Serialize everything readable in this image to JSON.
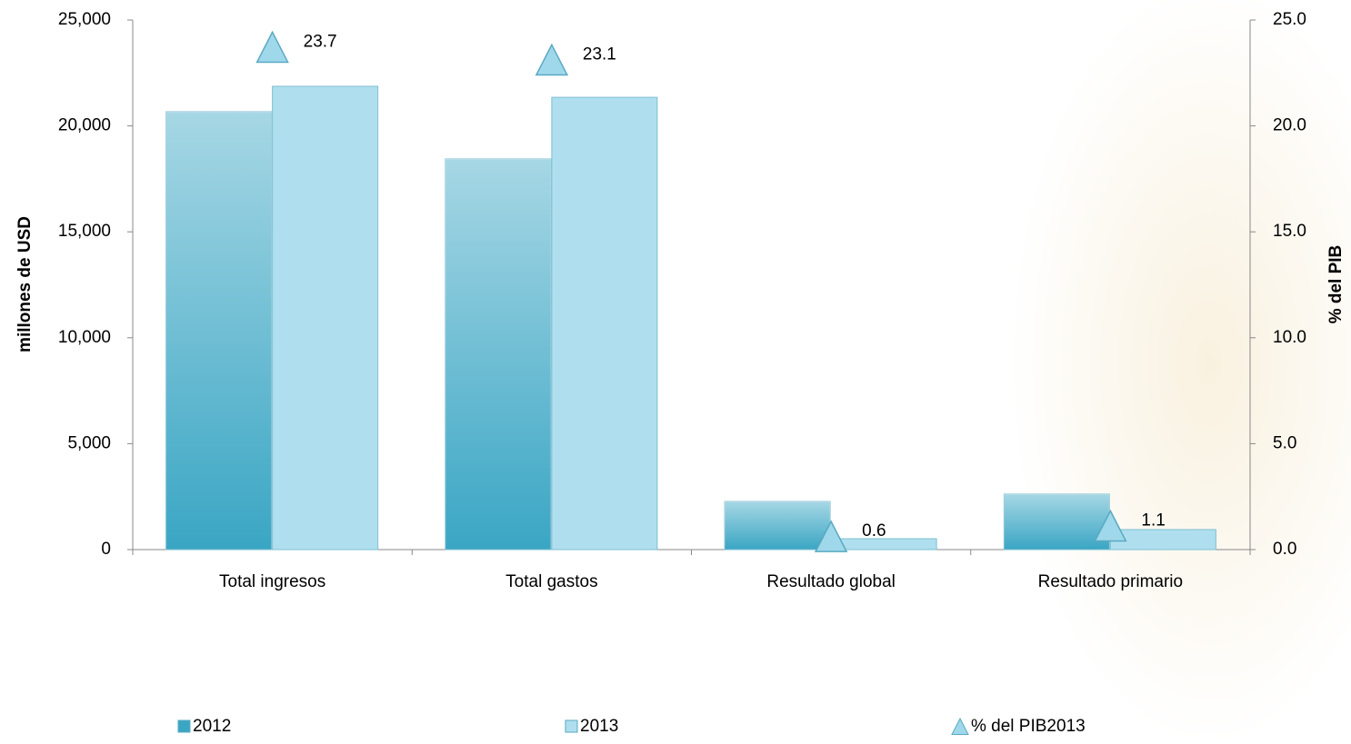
{
  "chart_data": {
    "type": "bar",
    "categories": [
      "Total ingresos",
      "Total gastos",
      "Resultado global",
      "Resultado primario"
    ],
    "y_label": "millones de USD",
    "y2_label": "% del PIB",
    "ylim": [
      0,
      25000
    ],
    "yticks": [
      0,
      {
        "value": 5000,
        "label": "5,000"
      },
      {
        "value": 10000,
        "label": "10,000"
      },
      {
        "value": 15000,
        "label": "15,000"
      },
      {
        "value": 20000,
        "label": "20,000"
      },
      {
        "value": 25000,
        "label": "25,000"
      }
    ],
    "y2lim": [
      0,
      25
    ],
    "y2ticks": [
      {
        "value": 0,
        "label": "0.0"
      },
      {
        "value": 5,
        "label": "5.0"
      },
      {
        "value": 10,
        "label": "10.0"
      },
      {
        "value": 15,
        "label": "15.0"
      },
      {
        "value": 20,
        "label": "20.0"
      },
      {
        "value": 25,
        "label": "25.0"
      }
    ],
    "series": [
      {
        "name": "2012",
        "color": "#3aa6c4",
        "type": "bar",
        "values": [
          20670,
          18440,
          2270,
          2620
        ]
      },
      {
        "name": "2013",
        "color": "#afdfee",
        "type": "bar",
        "values": [
          21870,
          21350,
          515,
          945
        ]
      },
      {
        "name": "% del PIB2013",
        "color": "#9fd8ea",
        "type": "marker",
        "axis": "y2",
        "values": [
          23.7,
          23.1,
          0.6,
          1.1
        ]
      }
    ]
  }
}
